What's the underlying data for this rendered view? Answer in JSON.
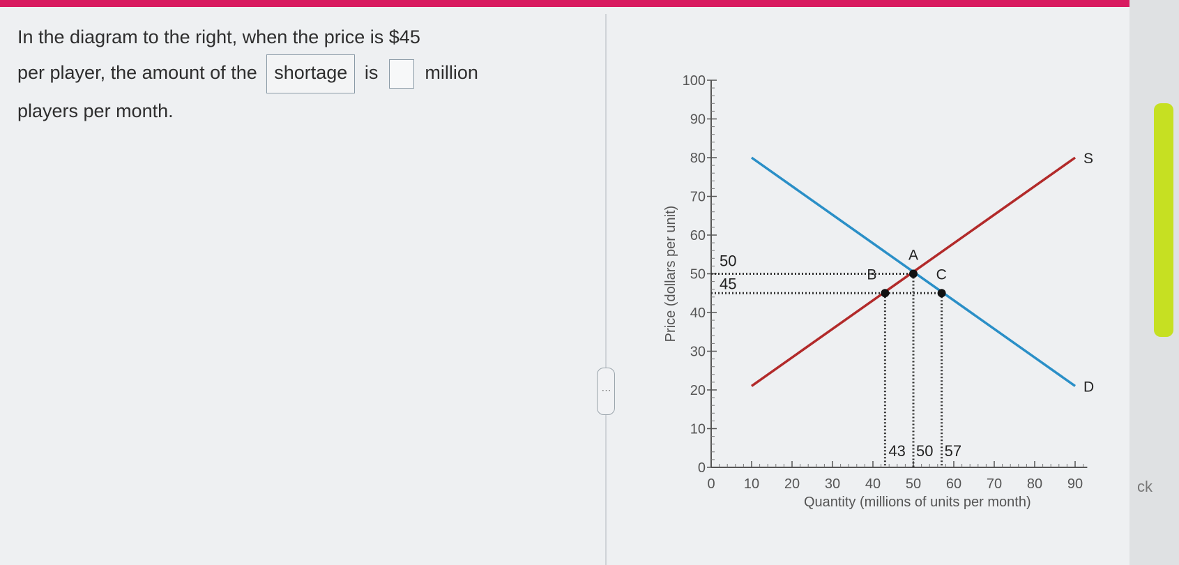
{
  "question": {
    "line1": "In the diagram to the right, when the price is $45",
    "line2_prefix": "per player, the amount of the",
    "dropdown_value": "shortage",
    "line2_mid": "is",
    "line2_suffix": "million",
    "line3": "players per month."
  },
  "answer_input": {
    "value": ""
  },
  "splitter": {
    "label": "⋯"
  },
  "side_panel": {
    "text": "ck"
  },
  "colors": {
    "supply": "#b22a2a",
    "demand": "#2a8fc7",
    "accent_bar": "#d81b60",
    "side_tab": "#c6e022"
  },
  "chart_data": {
    "type": "line",
    "ylabel": "Price (dollars per unit)",
    "xlabel": "Quantity (millions of units per month)",
    "xlim": [
      0,
      93
    ],
    "ylim": [
      0,
      100
    ],
    "xticks": [
      0,
      10,
      20,
      30,
      40,
      50,
      60,
      70,
      80,
      90
    ],
    "yticks": [
      0,
      10,
      20,
      30,
      40,
      50,
      60,
      70,
      80,
      90,
      100
    ],
    "series": [
      {
        "name": "S",
        "points": [
          [
            10,
            21
          ],
          [
            90,
            80
          ]
        ]
      },
      {
        "name": "D",
        "points": [
          [
            10,
            80
          ],
          [
            90,
            21
          ]
        ]
      }
    ],
    "points": [
      {
        "label": "A",
        "x": 50,
        "y": 50
      },
      {
        "label": "B",
        "x": 43,
        "y": 45
      },
      {
        "label": "C",
        "x": 57,
        "y": 45
      }
    ],
    "price_labels": [
      "50",
      "45"
    ],
    "quantity_labels": [
      "43",
      "50",
      "57"
    ]
  }
}
